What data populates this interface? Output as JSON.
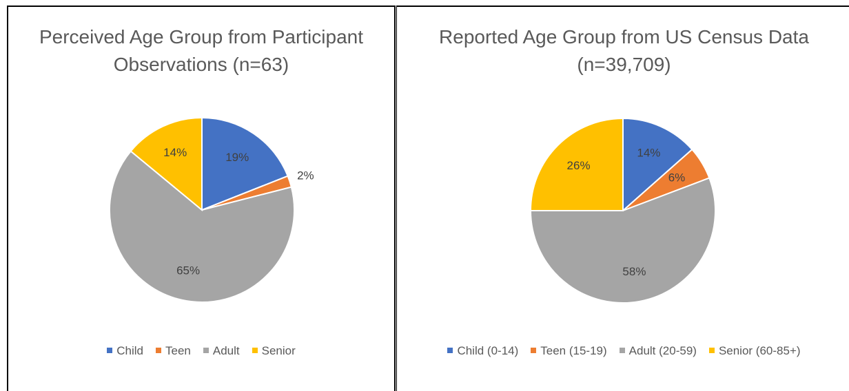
{
  "chart_data": [
    {
      "type": "pie",
      "title": "Perceived Age Group from Participant Observations (n=63)",
      "categories": [
        "Child",
        "Teen",
        "Adult",
        "Senior"
      ],
      "values": [
        19,
        2,
        65,
        14
      ],
      "value_labels": [
        "19%",
        "2%",
        "65%",
        "14%"
      ],
      "colors": [
        "#4472c4",
        "#ed7d31",
        "#a5a5a5",
        "#ffc000"
      ],
      "legend": "bottom"
    },
    {
      "type": "pie",
      "title": "Reported Age Group from US Census Data (n=39,709)",
      "categories": [
        "Child (0-14)",
        "Teen (15-19)",
        "Adult (20-59)",
        "Senior (60-85+)"
      ],
      "values": [
        14,
        6,
        58,
        26
      ],
      "value_labels": [
        "14%",
        "6%",
        "58%",
        "26%"
      ],
      "colors": [
        "#4472c4",
        "#ed7d31",
        "#a5a5a5",
        "#ffc000"
      ],
      "legend": "bottom"
    }
  ]
}
